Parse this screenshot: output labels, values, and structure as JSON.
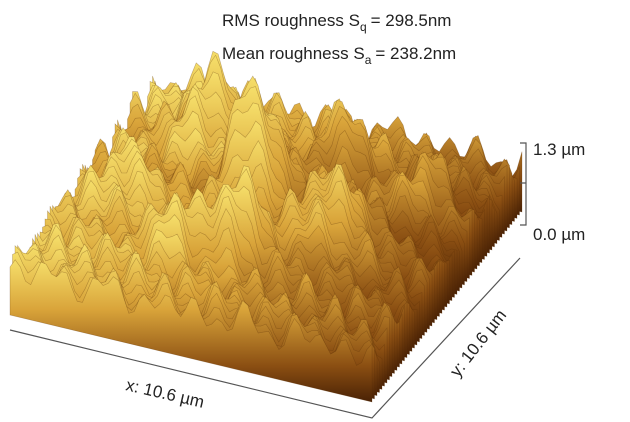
{
  "roughness": {
    "rms": {
      "label": "RMS roughness S",
      "subscript": "q",
      "value": "= 298.5nm"
    },
    "mean": {
      "label": "Mean roughness S",
      "subscript": "a",
      "value": "= 238.2nm"
    }
  },
  "z_scale": {
    "top": "1.3 µm",
    "bottom": "0.0 µm"
  },
  "axes": {
    "x": "x: 10.6 µm",
    "y": "y: 10.6 µm"
  }
}
